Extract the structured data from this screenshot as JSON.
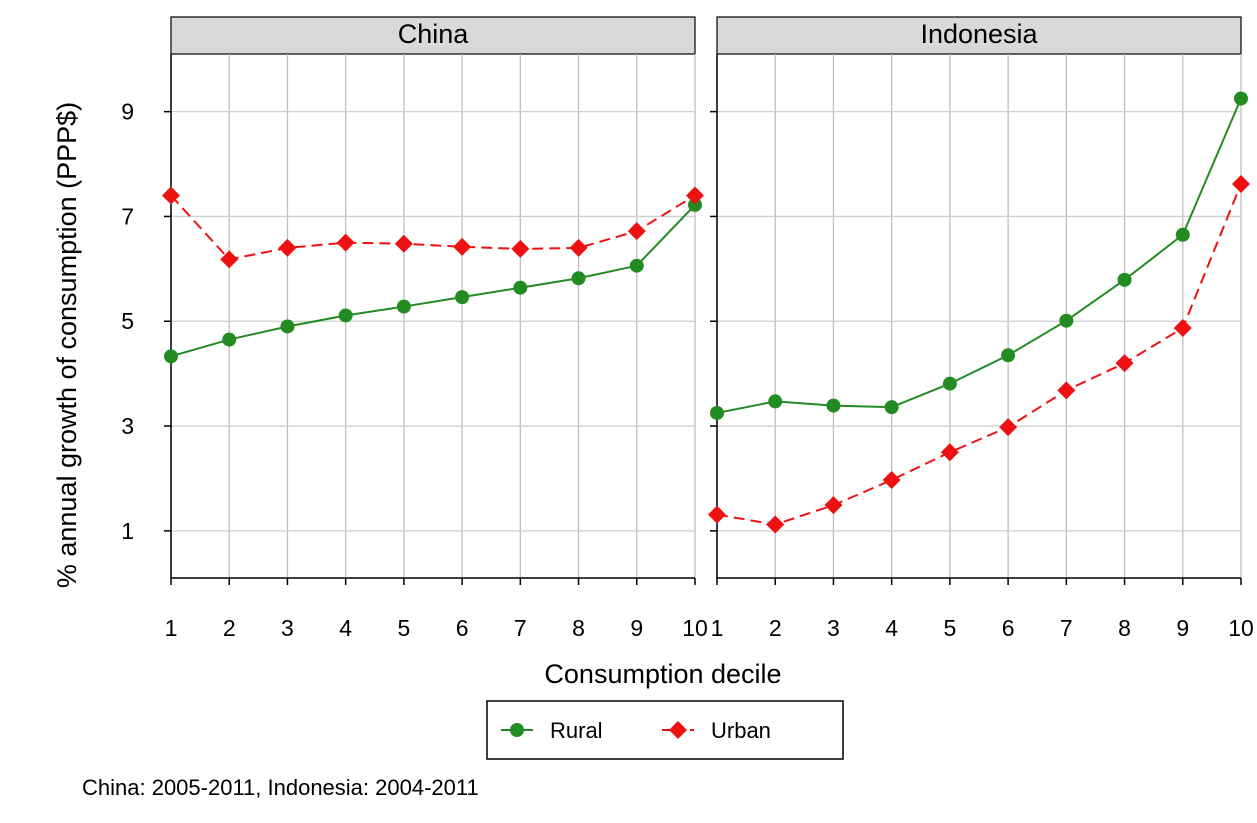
{
  "chart_data": {
    "type": "line",
    "ylabel": "% annual growth of consumption (PPP$)",
    "xlabel": "Consumption decile",
    "ylim": [
      0.1,
      10.1
    ],
    "yticks": [
      1,
      3,
      5,
      7,
      9
    ],
    "xticks": [
      1,
      2,
      3,
      4,
      5,
      6,
      7,
      8,
      9,
      10
    ],
    "grid": true,
    "legend": {
      "position": "bottom-center",
      "entries": [
        {
          "name": "Rural",
          "color": "#228B22",
          "marker": "circle",
          "linestyle": "solid"
        },
        {
          "name": "Urban",
          "color": "#EE1111",
          "marker": "diamond",
          "linestyle": "dashed"
        }
      ]
    },
    "panels": [
      {
        "title": "China",
        "series": [
          {
            "name": "Rural",
            "values": [
              4.33,
              4.65,
              4.9,
              5.11,
              5.28,
              5.46,
              5.64,
              5.82,
              6.06,
              7.22
            ]
          },
          {
            "name": "Urban",
            "values": [
              7.4,
              6.18,
              6.4,
              6.5,
              6.48,
              6.42,
              6.38,
              6.4,
              6.72,
              7.4
            ]
          }
        ]
      },
      {
        "title": "Indonesia",
        "series": [
          {
            "name": "Rural",
            "values": [
              3.25,
              3.47,
              3.39,
              3.36,
              3.81,
              4.35,
              5.01,
              5.79,
              6.65,
              9.25
            ]
          },
          {
            "name": "Urban",
            "values": [
              1.31,
              1.12,
              1.49,
              1.97,
              2.5,
              2.98,
              3.68,
              4.2,
              4.87,
              7.62
            ]
          }
        ]
      }
    ],
    "note": "China: 2005-2011, Indonesia: 2004-2011"
  }
}
